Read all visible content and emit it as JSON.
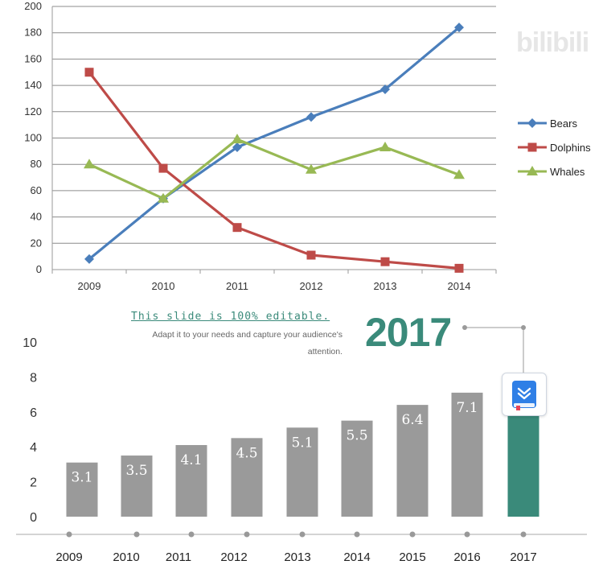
{
  "watermark": "bilibili",
  "slide": {
    "headline": "This slide is 100% editable.",
    "description_line1": "Adapt it to your needs and capture your audience's",
    "description_line2": "attention.",
    "highlight_year": "2017"
  },
  "icons": {
    "book": "book-download-icon"
  },
  "colors": {
    "bears": "#4a7ebb",
    "dolphins": "#be4b48",
    "whales": "#98b954",
    "bar": "#9a9a9a",
    "highlight_bar": "#3a8a7a",
    "accent": "#3a8a7a"
  },
  "chart_data": [
    {
      "type": "line",
      "categories": [
        "2009",
        "2010",
        "2011",
        "2012",
        "2013",
        "2014"
      ],
      "ylim": [
        0,
        200
      ],
      "y_ticks": [
        "0",
        "20",
        "40",
        "60",
        "80",
        "100",
        "120",
        "140",
        "160",
        "180",
        "200"
      ],
      "grid": true,
      "legend_position": "right",
      "series": [
        {
          "name": "Bears",
          "values": [
            8,
            54,
            93,
            116,
            137,
            184
          ],
          "marker": "diamond"
        },
        {
          "name": "Dolphins",
          "values": [
            150,
            77,
            32,
            11,
            6,
            1
          ],
          "marker": "square"
        },
        {
          "name": "Whales",
          "values": [
            80,
            54,
            99,
            76,
            93,
            72
          ],
          "marker": "triangle"
        }
      ]
    },
    {
      "type": "bar",
      "categories": [
        "2009",
        "2010",
        "2011",
        "2012",
        "2013",
        "2014",
        "2015",
        "2016",
        "2017"
      ],
      "values": [
        3.1,
        3.5,
        4.1,
        4.5,
        5.1,
        5.5,
        6.4,
        7.1,
        7.8
      ],
      "data_labels": [
        "3.1",
        "3.5",
        "4.1",
        "4.5",
        "5.1",
        "5.5",
        "6.4",
        "7.1",
        ""
      ],
      "highlight_index": 8,
      "ylim": [
        0,
        10
      ],
      "y_ticks": [
        "0",
        "2",
        "4",
        "6",
        "8",
        "10"
      ],
      "grid": false
    }
  ]
}
